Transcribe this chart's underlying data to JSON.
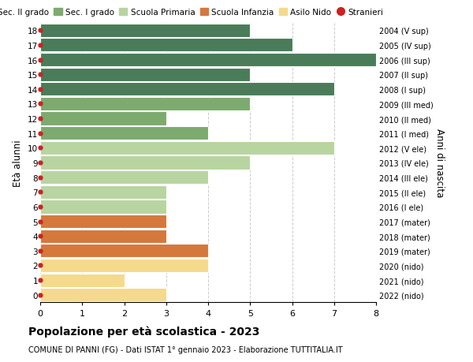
{
  "ages": [
    18,
    17,
    16,
    15,
    14,
    13,
    12,
    11,
    10,
    9,
    8,
    7,
    6,
    5,
    4,
    3,
    2,
    1,
    0
  ],
  "right_labels": [
    "2004 (V sup)",
    "2005 (IV sup)",
    "2006 (III sup)",
    "2007 (II sup)",
    "2008 (I sup)",
    "2009 (III med)",
    "2010 (II med)",
    "2011 (I med)",
    "2012 (V ele)",
    "2013 (IV ele)",
    "2014 (III ele)",
    "2015 (II ele)",
    "2016 (I ele)",
    "2017 (mater)",
    "2018 (mater)",
    "2019 (mater)",
    "2020 (nido)",
    "2021 (nido)",
    "2022 (nido)"
  ],
  "bar_values": [
    5,
    6,
    8,
    5,
    7,
    5,
    3,
    4,
    7,
    5,
    4,
    3,
    3,
    3,
    3,
    4,
    4,
    2,
    3
  ],
  "bar_colors": [
    "#4a7c59",
    "#4a7c59",
    "#4a7c59",
    "#4a7c59",
    "#4a7c59",
    "#7daa6e",
    "#7daa6e",
    "#7daa6e",
    "#b8d4a0",
    "#b8d4a0",
    "#b8d4a0",
    "#b8d4a0",
    "#b8d4a0",
    "#d4783c",
    "#d4783c",
    "#d4783c",
    "#f5d98c",
    "#f5d98c",
    "#f5d98c"
  ],
  "legend_labels": [
    "Sec. II grado",
    "Sec. I grado",
    "Scuola Primaria",
    "Scuola Infanzia",
    "Asilo Nido",
    "Stranieri"
  ],
  "legend_colors": [
    "#4a7c59",
    "#7daa6e",
    "#b8d4a0",
    "#d4783c",
    "#f5d98c",
    "#cc2222"
  ],
  "title": "Popolazione per età scolastica - 2023",
  "subtitle": "COMUNE DI PANNI (FG) - Dati ISTAT 1° gennaio 2023 - Elaborazione TUTTITALIA.IT",
  "ylabel": "Età alunni",
  "right_ylabel": "Anni di nascita",
  "xlim": [
    0,
    8
  ],
  "xticks": [
    0,
    1,
    2,
    3,
    4,
    5,
    6,
    7,
    8
  ],
  "stranieri_color": "#cc2222",
  "bar_height": 0.92,
  "background_color": "#ffffff",
  "grid_color": "#cccccc"
}
